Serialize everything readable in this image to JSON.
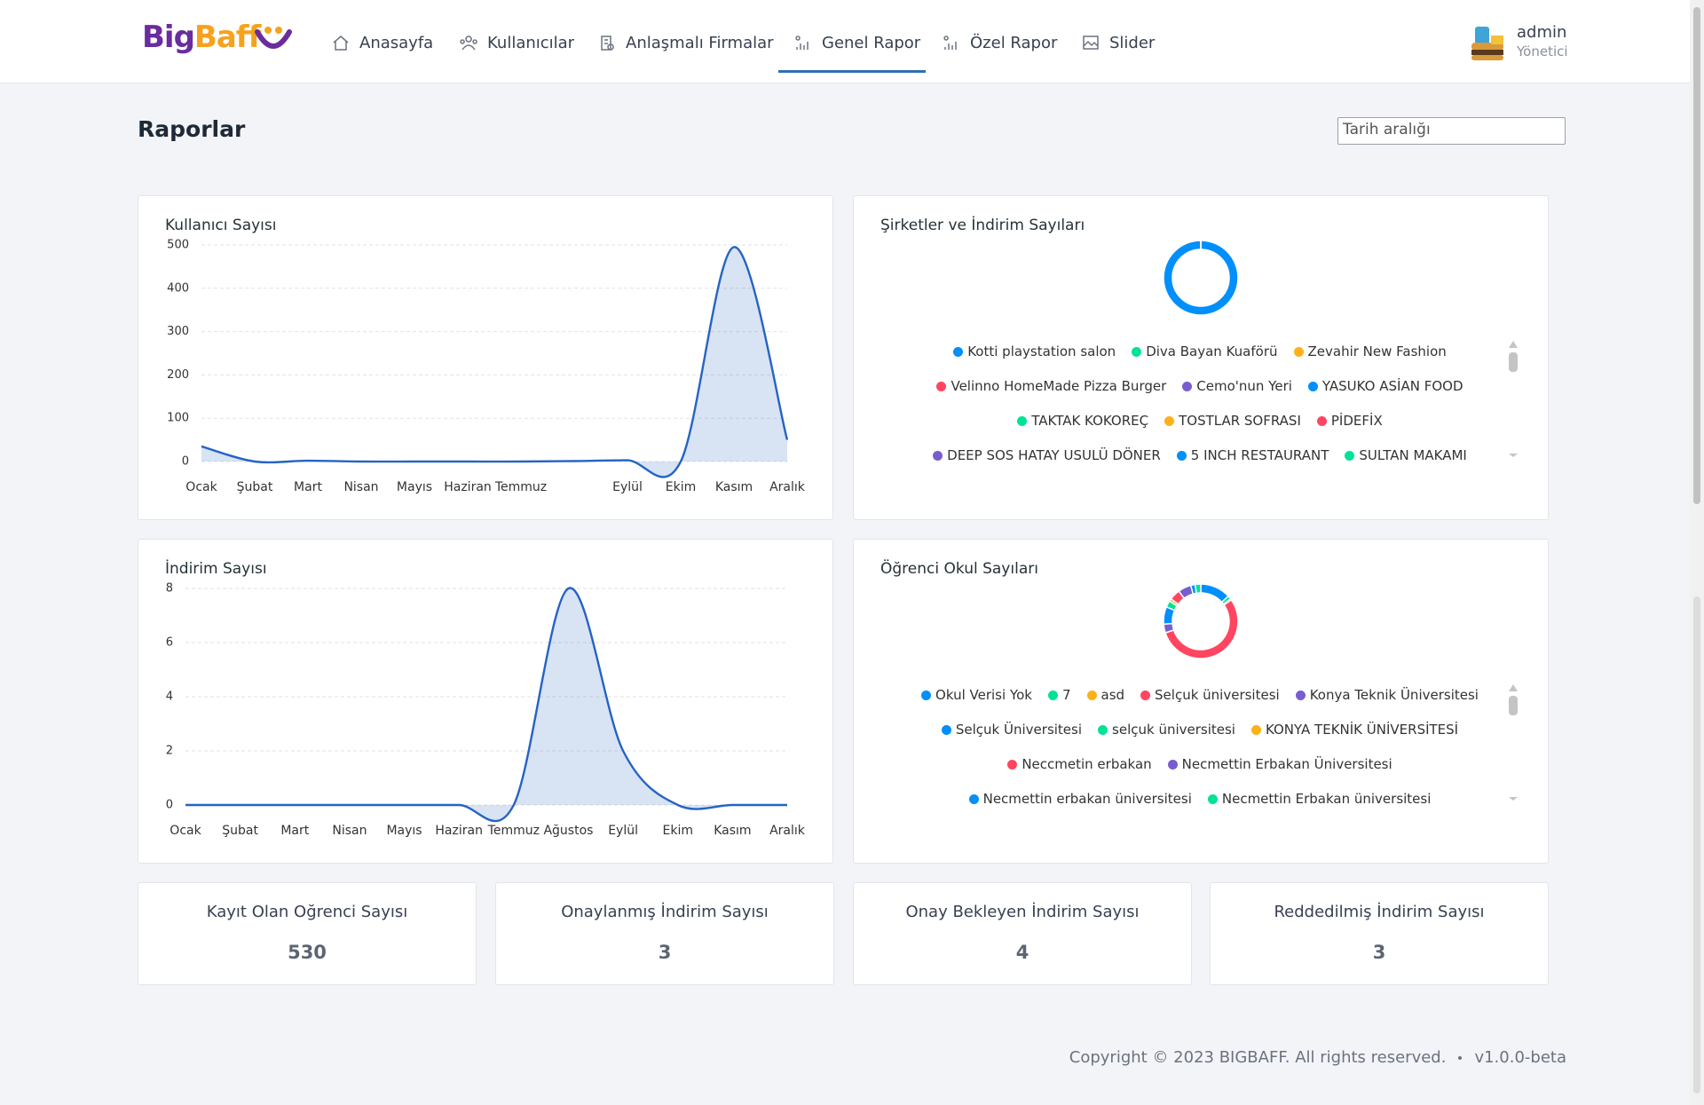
{
  "nav": {
    "logo": {
      "first": "Big",
      "second": "Baff"
    },
    "items": [
      "Anasayfa",
      "Kullanıcılar",
      "Anlaşmalı Firmalar",
      "Genel Rapor",
      "Özel Rapor",
      "Slider"
    ],
    "user": {
      "name": "admin",
      "role": "Yönetici"
    }
  },
  "page_title": "Raporlar",
  "date_placeholder": "Tarih aralığı",
  "chart_data": [
    {
      "type": "line",
      "title": "Kullanıcı Sayısı",
      "categories": [
        "Ocak",
        "Şubat",
        "Mart",
        "Nisan",
        "Mayıs",
        "Haziran",
        "Temmuz",
        null,
        "Eylül",
        "Ekim",
        "Kasım",
        "Aralık"
      ],
      "values": [
        35,
        0,
        2,
        0,
        0,
        0,
        0,
        1,
        3,
        0,
        495,
        50
      ],
      "ylim": [
        0,
        500
      ],
      "yticks": [
        0,
        100,
        200,
        300,
        400,
        500
      ],
      "grid": true,
      "color": "#2563c4"
    },
    {
      "type": "donut",
      "title": "Şirketler ve İndirim Sayıları",
      "labels": [
        "Kotti playstation salon",
        "Diva Bayan Kuaförü",
        "Zevahir New Fashion",
        "Velinno HomeMade Pizza Burger",
        "Cemo'nun Yeri",
        "YASUKO ASİAN FOOD",
        "TAKTAK KOKOREÇ",
        "TOSTLAR SOFRASI",
        "PİDEFİX",
        "DEEP SOS HATAY USULÜ DÖNER",
        "5 INCH RESTAURANT",
        "SULTAN MAKAMI"
      ],
      "values": [
        10,
        0,
        0,
        0,
        0,
        0,
        0,
        0,
        0,
        0,
        0,
        0
      ],
      "colors": [
        "#008ffb",
        "#00e396",
        "#feb019",
        "#ff4560",
        "#775dd0",
        "#008ffb",
        "#00e396",
        "#feb019",
        "#ff4560",
        "#775dd0",
        "#008ffb",
        "#00e396"
      ]
    },
    {
      "type": "line",
      "title": "İndirim Sayısı",
      "categories": [
        "Ocak",
        "Şubat",
        "Mart",
        "Nisan",
        "Mayıs",
        "Haziran",
        "Temmuz",
        "Ağustos",
        "Eylül",
        "Ekim",
        "Kasım",
        "Aralık"
      ],
      "values": [
        0,
        0,
        0,
        0,
        0,
        0,
        0,
        8,
        2,
        0,
        0,
        0
      ],
      "ylim": [
        0,
        8
      ],
      "yticks": [
        0,
        2,
        4,
        6,
        8
      ],
      "grid": true,
      "color": "#2563c4"
    },
    {
      "type": "donut",
      "title": "Öğrenci Okul Sayıları",
      "labels": [
        "Okul Verisi Yok",
        "7",
        "asd",
        "Selçuk üniversitesi",
        "Konya Teknik Üniversitesi",
        "Selçuk Üniversitesi",
        "selçuk üniversitesi",
        "KONYA TEKNİK ÜNİVERSİTESİ",
        "Neccmetin erbakan",
        "Necmettin Erbakan Üniversitesi",
        "Necmettin erbakan üniversitesi",
        "Necmettin Erbakan üniversitesi"
      ],
      "values": [
        70,
        8,
        3,
        290,
        20,
        40,
        15,
        6,
        25,
        30,
        10,
        13
      ],
      "colors": [
        "#008ffb",
        "#00e396",
        "#feb019",
        "#ff4560",
        "#775dd0",
        "#008ffb",
        "#00e396",
        "#feb019",
        "#ff4560",
        "#775dd0",
        "#008ffb",
        "#00e396"
      ]
    }
  ],
  "stats": [
    {
      "label": "Kayıt Olan Oğrenci Sayısı",
      "value": 530
    },
    {
      "label": "Onaylanmış İndirim Sayısı",
      "value": 3
    },
    {
      "label": "Onay Bekleyen İndirim Sayısı",
      "value": 4
    },
    {
      "label": "Reddedilmiş İndirim Sayısı",
      "value": 3
    }
  ],
  "footer": {
    "copyright": "Copyright © 2023 BIGBAFF. All rights reserved.",
    "version": "v1.0.0-beta"
  }
}
